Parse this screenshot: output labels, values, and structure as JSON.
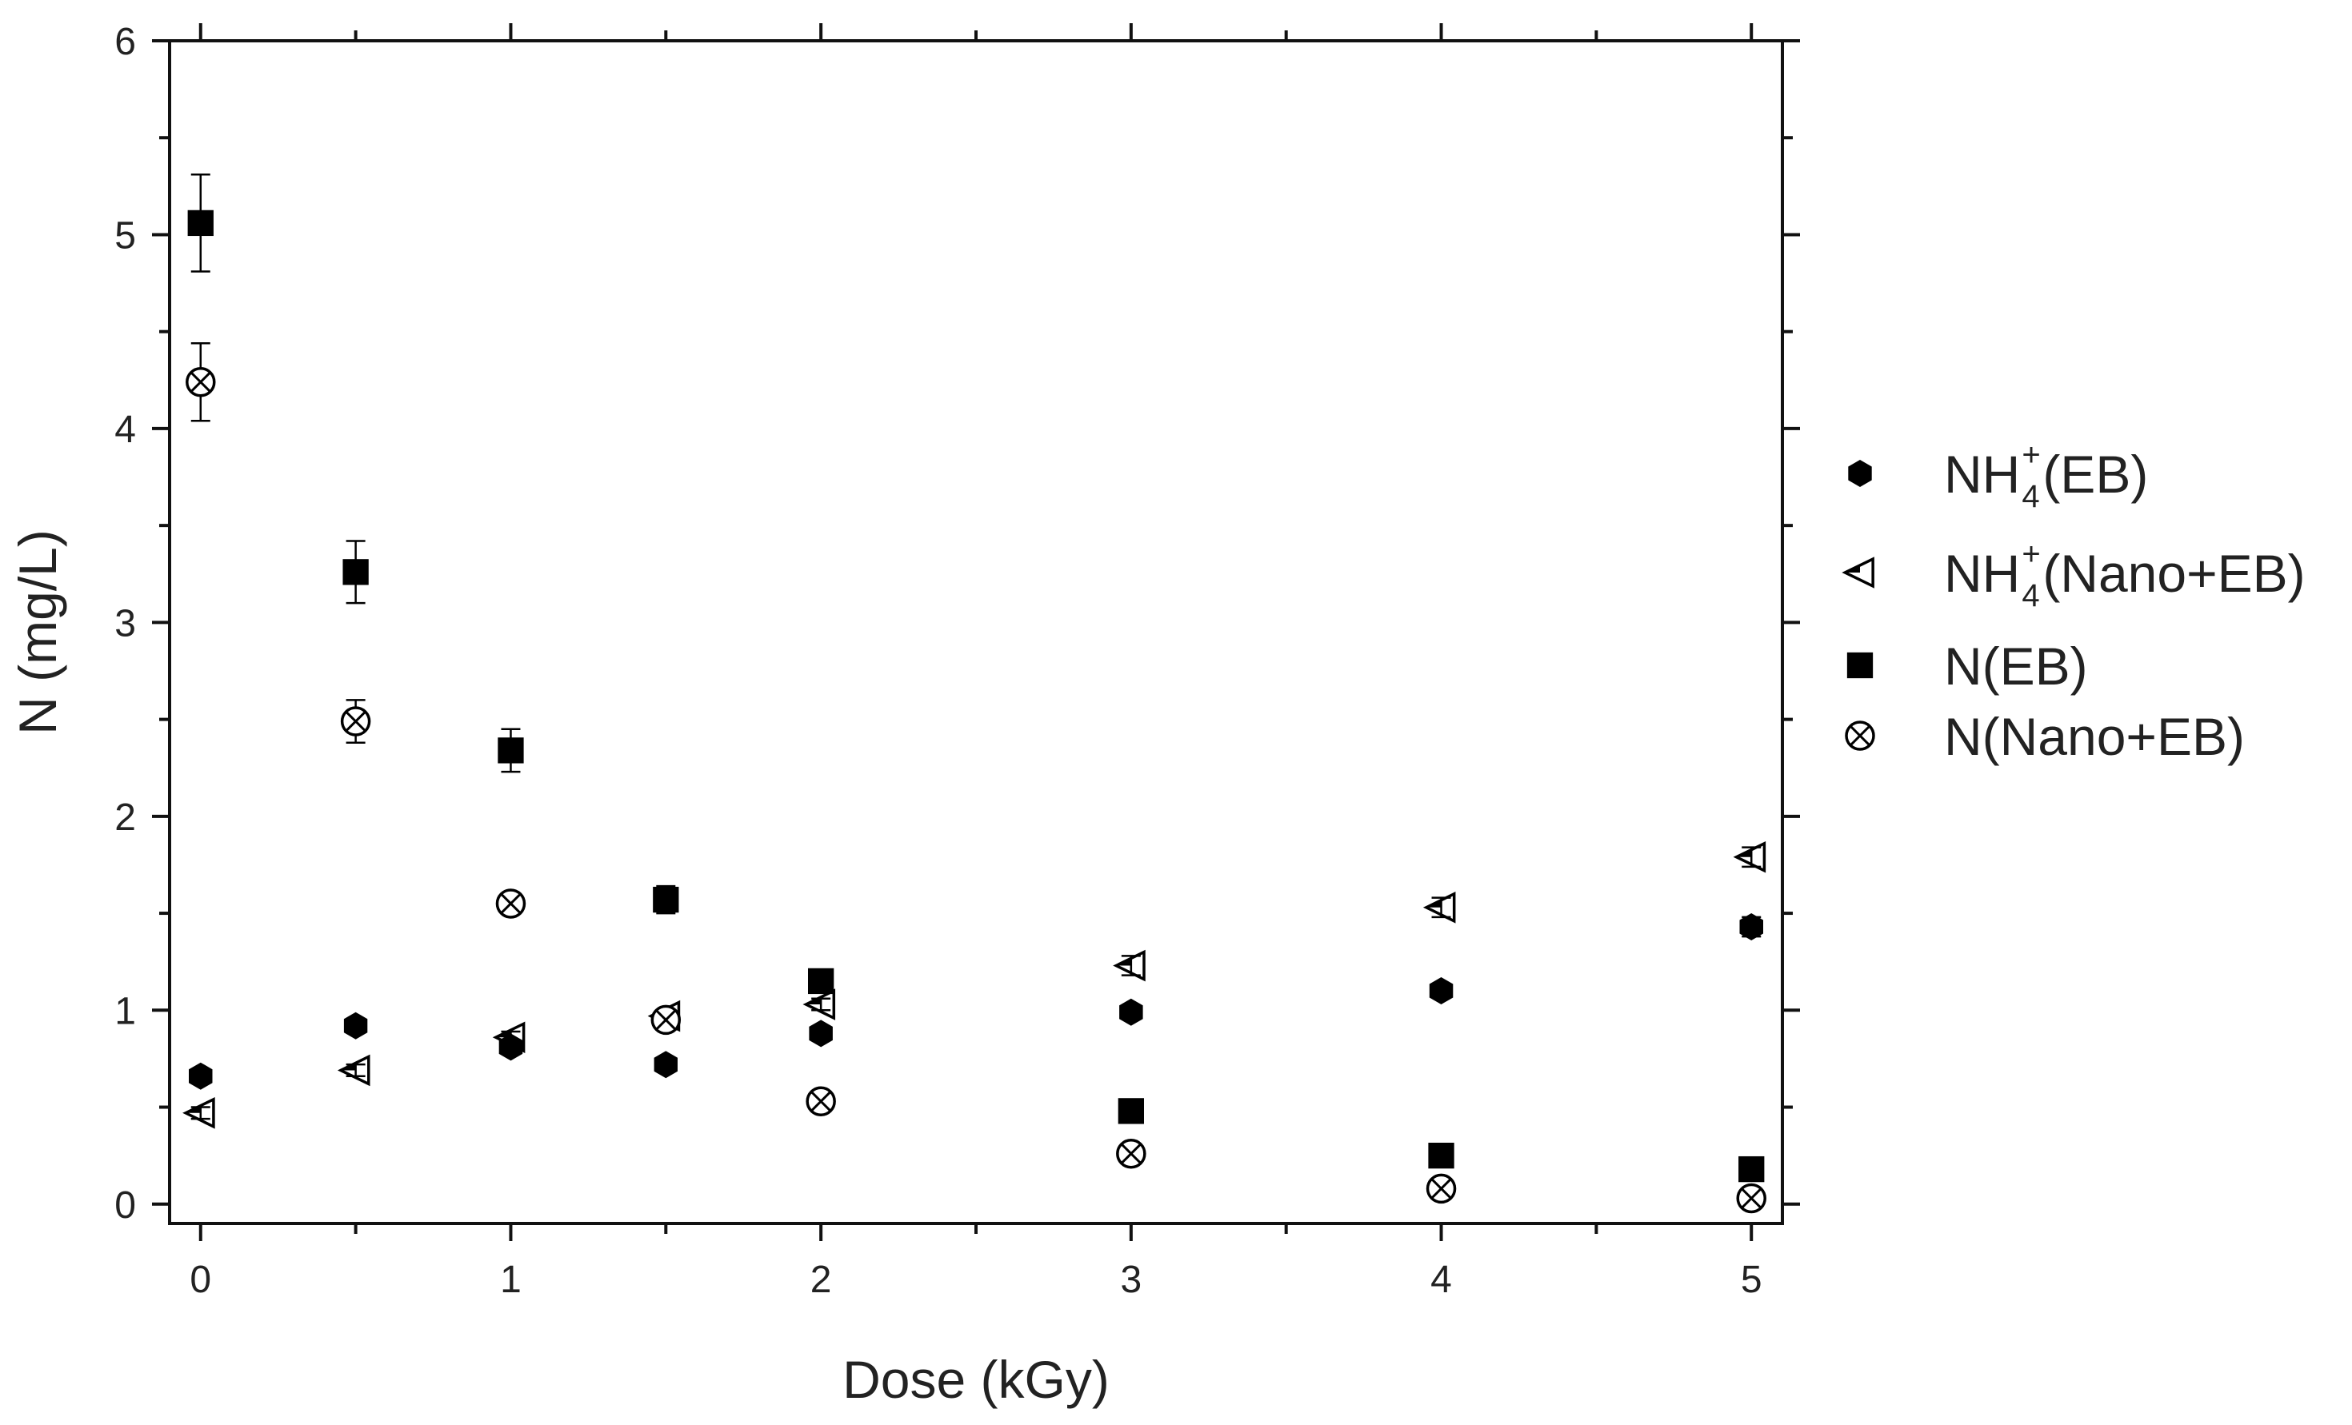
{
  "chart_data": {
    "type": "scatter",
    "title": "",
    "xlabel": "Dose (kGy)",
    "ylabel": "N (mg/L)",
    "xlim": [
      -0.1,
      5.1
    ],
    "ylim": [
      -0.1,
      6
    ],
    "x_ticks": [
      0,
      1,
      2,
      3,
      4,
      5
    ],
    "x_tick_labels": [
      "0",
      "1",
      "2",
      "3",
      "4",
      "5"
    ],
    "x_minor_ticks": [
      0.5,
      1.5,
      2.5,
      3.5,
      4.5
    ],
    "y_ticks": [
      0,
      1,
      2,
      3,
      4,
      5,
      6
    ],
    "y_tick_labels": [
      "0",
      "1",
      "2",
      "3",
      "4",
      "5",
      "6"
    ],
    "y_minor_ticks": [
      0.5,
      1.5,
      2.5,
      3.5,
      4.5,
      5.5
    ],
    "grid": false,
    "legend_position": "outside-right",
    "series": [
      {
        "name": "NH4+(EB)",
        "legend_main_before": "NH",
        "legend_sub": "4",
        "legend_sup": "+",
        "legend_main_after": "(EB)",
        "marker": "hexagon-filled",
        "color": "#000000",
        "x": [
          0,
          0.5,
          1,
          1.5,
          2,
          3,
          4,
          5
        ],
        "y": [
          0.66,
          0.92,
          0.81,
          0.72,
          0.88,
          0.99,
          1.1,
          1.43
        ],
        "err": [
          0.02,
          0.03,
          0.03,
          0.03,
          0.03,
          0.03,
          0.03,
          0.05
        ]
      },
      {
        "name": "NH4+(Nano+EB)",
        "legend_main_before": "NH",
        "legend_sub": "4",
        "legend_sup": "+",
        "legend_main_after": "(Nano+EB)",
        "marker": "triangle-left-half",
        "color": "#000000",
        "x": [
          0,
          0.5,
          1,
          1.5,
          2,
          3,
          4,
          5
        ],
        "y": [
          0.47,
          0.69,
          0.86,
          0.97,
          1.03,
          1.23,
          1.53,
          1.79
        ],
        "err": [
          0.03,
          0.03,
          0.03,
          0.03,
          0.03,
          0.05,
          0.05,
          0.05
        ]
      },
      {
        "name": "N(EB)",
        "legend_main_before": "N(EB)",
        "legend_sub": "",
        "legend_sup": "",
        "legend_main_after": "",
        "marker": "square-filled",
        "color": "#000000",
        "x": [
          0,
          0.5,
          1,
          1.5,
          2,
          3,
          4,
          5
        ],
        "y": [
          5.06,
          3.26,
          2.34,
          1.57,
          1.15,
          0.48,
          0.25,
          0.18
        ],
        "err": [
          0.25,
          0.16,
          0.11,
          0.07,
          0.03,
          0.02,
          0.02,
          0.02
        ]
      },
      {
        "name": "N(Nano+EB)",
        "legend_main_before": "N(Nano+EB)",
        "legend_sub": "",
        "legend_sup": "",
        "legend_main_after": "",
        "marker": "circle-x",
        "color": "#000000",
        "x": [
          0,
          0.5,
          1,
          1.5,
          2,
          3,
          4,
          5
        ],
        "y": [
          4.24,
          2.49,
          1.55,
          0.95,
          0.53,
          0.26,
          0.08,
          0.03
        ],
        "err": [
          0.2,
          0.11,
          0.04,
          0.03,
          0.03,
          0.03,
          0.02,
          0.02
        ]
      }
    ]
  }
}
